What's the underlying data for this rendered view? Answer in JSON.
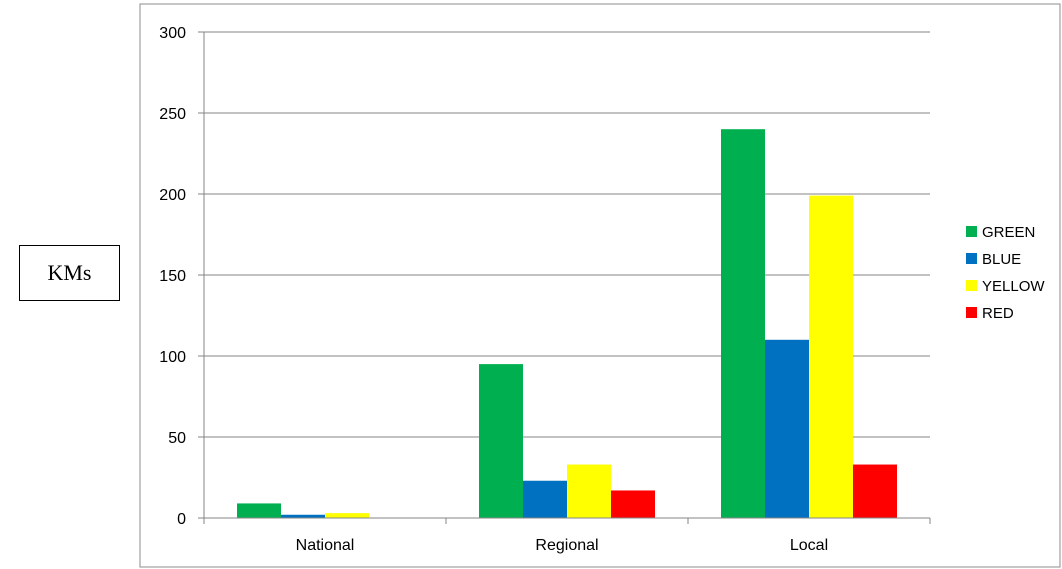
{
  "chart_data": {
    "type": "bar",
    "categories": [
      "National",
      "Regional",
      "Local"
    ],
    "series": [
      {
        "name": "GREEN",
        "color": "#00b050",
        "values": [
          9,
          95,
          240
        ]
      },
      {
        "name": "BLUE",
        "color": "#0070c0",
        "values": [
          2,
          23,
          110
        ]
      },
      {
        "name": "YELLOW",
        "color": "#ffff00",
        "values": [
          3,
          33,
          199
        ]
      },
      {
        "name": "RED",
        "color": "#ff0000",
        "values": [
          0,
          17,
          33
        ]
      }
    ],
    "ylabel": "KMs",
    "ylim": [
      0,
      300
    ],
    "yticks": [
      "0",
      "50",
      "100",
      "150",
      "200",
      "250",
      "300"
    ],
    "grid": true,
    "legend_position": "right"
  }
}
